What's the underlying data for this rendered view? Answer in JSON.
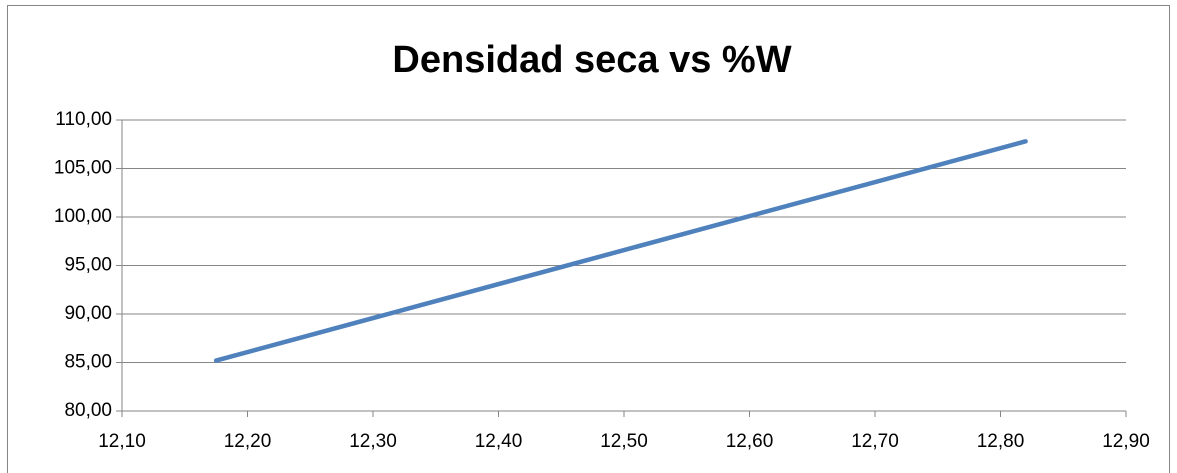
{
  "chart_data": {
    "type": "line",
    "title": "Densidad seca vs %W",
    "x": [
      12.175,
      12.82
    ],
    "series": [
      {
        "name": "Densidad seca",
        "color": "#4f81bd",
        "values": [
          85.2,
          107.8
        ]
      }
    ],
    "xlim": [
      12.1,
      12.9
    ],
    "xticks": [
      {
        "value": 12.1,
        "label": "12,10"
      },
      {
        "value": 12.2,
        "label": "12,20"
      },
      {
        "value": 12.3,
        "label": "12,30"
      },
      {
        "value": 12.4,
        "label": "12,40"
      },
      {
        "value": 12.5,
        "label": "12,50"
      },
      {
        "value": 12.6,
        "label": "12,60"
      },
      {
        "value": 12.7,
        "label": "12,70"
      },
      {
        "value": 12.8,
        "label": "12,80"
      },
      {
        "value": 12.9,
        "label": "12,90"
      }
    ],
    "ylim": [
      80,
      110
    ],
    "yticks": [
      {
        "value": 80,
        "label": "80,00"
      },
      {
        "value": 85,
        "label": "85,00"
      },
      {
        "value": 90,
        "label": "90,00"
      },
      {
        "value": 95,
        "label": "95,00"
      },
      {
        "value": 100,
        "label": "100,00"
      },
      {
        "value": 105,
        "label": "105,00"
      },
      {
        "value": 110,
        "label": "110,00"
      }
    ],
    "grid": true
  }
}
